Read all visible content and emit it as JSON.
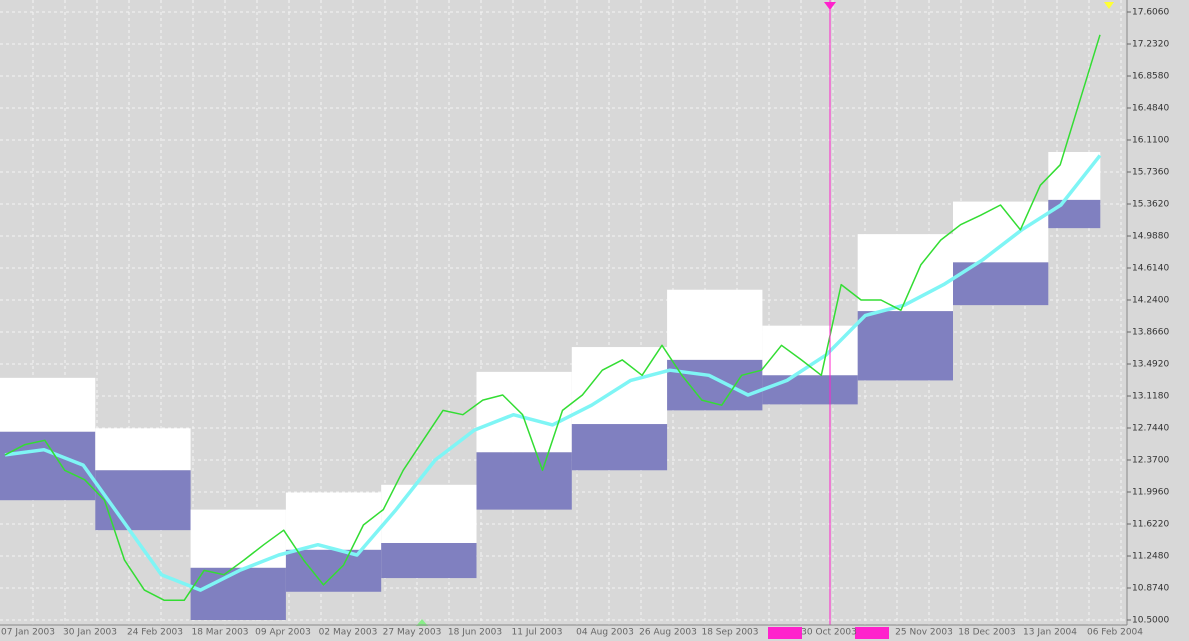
{
  "chart_data": {
    "type": "line",
    "x_labels": [
      "07 Jan 2003",
      "30 Jan 2003",
      "24 Feb 2003",
      "18 Mar 2003",
      "09 Apr 2003",
      "02 May 2003",
      "27 May 2003",
      "18 Jun 2003",
      "11 Jul 2003",
      "04 Aug 2003",
      "26 Aug 2003",
      "18 Sep 2003",
      "30 Oct 2003",
      "25 Nov 2003",
      "18 Dec 2003",
      "13 Jan 2004",
      "06 Feb 2004"
    ],
    "series": [
      {
        "color": "#33dd33",
        "values": [
          12.43,
          12.55,
          12.6,
          12.25,
          12.14,
          11.9,
          11.2,
          10.85,
          10.73,
          10.73,
          11.08,
          11.03,
          11.2,
          11.38,
          11.55,
          11.2,
          10.91,
          11.14,
          11.61,
          11.79,
          12.25,
          12.6,
          12.95,
          12.9,
          13.07,
          13.13,
          12.9,
          12.25,
          12.95,
          13.13,
          13.42,
          13.54,
          13.36,
          13.71,
          13.36,
          13.07,
          13.01,
          13.36,
          13.42,
          13.71,
          13.54,
          13.36,
          14.42,
          14.24,
          14.24,
          14.12,
          14.65,
          14.94,
          15.12,
          15.23,
          15.35,
          15.06,
          15.58,
          15.82,
          16.58,
          17.34
        ]
      },
      {
        "color": "#7ff5f5",
        "values": [
          12.43,
          12.49,
          12.31,
          11.67,
          11.03,
          10.85,
          11.08,
          11.26,
          11.38,
          11.26,
          11.79,
          12.37,
          12.72,
          12.9,
          12.78,
          13.01,
          13.3,
          13.42,
          13.36,
          13.13,
          13.3,
          13.6,
          14.06,
          14.18,
          14.42,
          14.71,
          15.06,
          15.35,
          15.93
        ]
      }
    ],
    "boxes": {
      "high_color": "#ffffff",
      "low_color": "#8080c0",
      "high": [
        13.33,
        12.74,
        11.79,
        11.99,
        12.08,
        13.4,
        13.69,
        14.36,
        13.94,
        15.01,
        15.39,
        15.97
      ],
      "mid": [
        12.7,
        12.25,
        11.11,
        11.32,
        11.4,
        12.46,
        12.79,
        13.54,
        13.36,
        14.11,
        14.68,
        15.41
      ],
      "low": [
        11.9,
        11.55,
        10.5,
        10.83,
        10.99,
        11.79,
        12.25,
        12.95,
        13.02,
        13.3,
        14.18,
        15.08
      ]
    },
    "ylim": [
      10.5,
      17.606
    ],
    "yticks": [
      {
        "value": 10.5,
        "label": "10.5000"
      },
      {
        "value": 10.874,
        "label": "10.8740"
      },
      {
        "value": 11.248,
        "label": "11.2480"
      },
      {
        "value": 11.622,
        "label": "11.6220"
      },
      {
        "value": 11.996,
        "label": "11.9960"
      },
      {
        "value": 12.37,
        "label": "12.3700"
      },
      {
        "value": 12.744,
        "label": "12.7440"
      },
      {
        "value": 13.118,
        "label": "13.1180"
      },
      {
        "value": 13.492,
        "label": "13.4920"
      },
      {
        "value": 13.866,
        "label": "13.8660"
      },
      {
        "value": 14.24,
        "label": "14.2400"
      },
      {
        "value": 14.614,
        "label": "14.6140"
      },
      {
        "value": 14.988,
        "label": "14.9880"
      },
      {
        "value": 15.362,
        "label": "15.3620"
      },
      {
        "value": 15.736,
        "label": "15.7360"
      },
      {
        "value": 16.11,
        "label": "16.1100"
      },
      {
        "value": 16.484,
        "label": "16.4840"
      },
      {
        "value": 16.858,
        "label": "16.8580"
      },
      {
        "value": 17.232,
        "label": "17.2320"
      },
      {
        "value": 17.606,
        "label": "17.6060"
      }
    ],
    "grid": true
  }
}
